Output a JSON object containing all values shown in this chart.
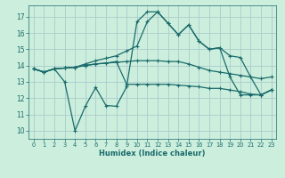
{
  "bg_color": "#cceedd",
  "grid_color": "#aacccc",
  "line_color": "#1a6b6b",
  "xlabel": "Humidex (Indice chaleur)",
  "xlim": [
    -0.5,
    23.5
  ],
  "ylim": [
    9.5,
    17.7
  ],
  "yticks": [
    10,
    11,
    12,
    13,
    14,
    15,
    16,
    17
  ],
  "xticks": [
    0,
    1,
    2,
    3,
    4,
    5,
    6,
    7,
    8,
    9,
    10,
    11,
    12,
    13,
    14,
    15,
    16,
    17,
    18,
    19,
    20,
    21,
    22,
    23
  ],
  "line1": [
    13.8,
    13.6,
    13.8,
    13.85,
    13.9,
    14.0,
    14.1,
    14.15,
    14.2,
    14.25,
    14.3,
    14.3,
    14.3,
    14.25,
    14.25,
    14.1,
    13.9,
    13.7,
    13.6,
    13.5,
    13.4,
    13.3,
    13.2,
    13.3
  ],
  "line2": [
    13.8,
    13.6,
    13.8,
    13.85,
    13.9,
    14.1,
    14.3,
    14.45,
    14.6,
    14.9,
    15.2,
    16.7,
    17.3,
    16.6,
    15.9,
    16.5,
    15.5,
    15.0,
    15.1,
    14.6,
    14.5,
    13.3,
    12.2,
    12.5
  ],
  "line3": [
    13.8,
    13.6,
    13.8,
    13.85,
    13.9,
    14.0,
    14.1,
    14.15,
    14.25,
    12.85,
    12.85,
    12.85,
    12.85,
    12.85,
    12.8,
    12.75,
    12.7,
    12.6,
    12.6,
    12.5,
    12.4,
    12.25,
    12.2,
    12.5
  ],
  "line4": [
    13.8,
    13.6,
    13.8,
    13.0,
    10.0,
    11.5,
    12.65,
    11.55,
    11.5,
    12.7,
    16.7,
    17.3,
    17.3,
    16.6,
    15.9,
    16.5,
    15.5,
    15.0,
    15.1,
    13.3,
    12.2,
    12.2,
    12.2,
    12.5
  ]
}
